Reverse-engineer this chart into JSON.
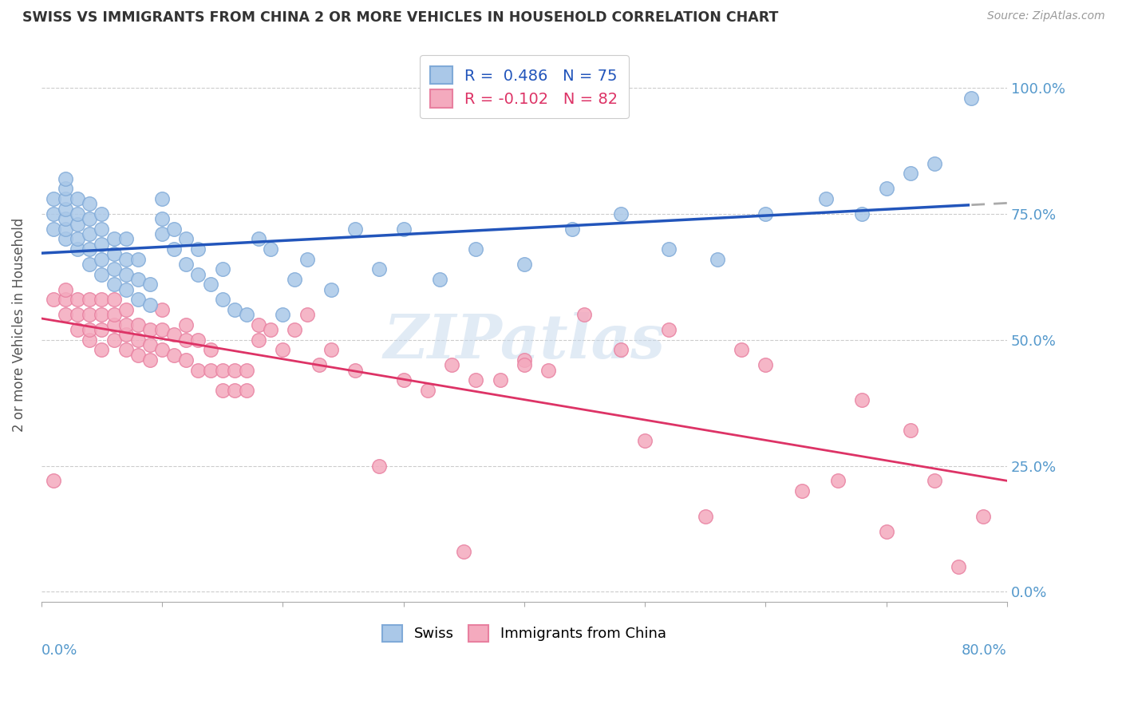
{
  "title": "SWISS VS IMMIGRANTS FROM CHINA 2 OR MORE VEHICLES IN HOUSEHOLD CORRELATION CHART",
  "source": "Source: ZipAtlas.com",
  "ylabel": "2 or more Vehicles in Household",
  "ytick_labels": [
    "0.0%",
    "25.0%",
    "50.0%",
    "75.0%",
    "100.0%"
  ],
  "ytick_values": [
    0.0,
    0.25,
    0.5,
    0.75,
    1.0
  ],
  "xlim": [
    0.0,
    0.8
  ],
  "ylim": [
    -0.02,
    1.08
  ],
  "swiss_color": "#aac8e8",
  "china_color": "#f4aabe",
  "swiss_edge": "#80aad8",
  "china_edge": "#e880a0",
  "trend_swiss_color": "#2255bb",
  "trend_china_color": "#dd3366",
  "trend_swiss_dash_color": "#aaaaaa",
  "R_swiss": 0.486,
  "N_swiss": 75,
  "R_china": -0.102,
  "N_china": 82,
  "legend_label_swiss": "Swiss",
  "legend_label_china": "Immigrants from China",
  "watermark": "ZIPatlas",
  "swiss_x": [
    0.01,
    0.01,
    0.01,
    0.02,
    0.02,
    0.02,
    0.02,
    0.02,
    0.02,
    0.02,
    0.03,
    0.03,
    0.03,
    0.03,
    0.03,
    0.04,
    0.04,
    0.04,
    0.04,
    0.04,
    0.05,
    0.05,
    0.05,
    0.05,
    0.05,
    0.06,
    0.06,
    0.06,
    0.06,
    0.07,
    0.07,
    0.07,
    0.07,
    0.08,
    0.08,
    0.08,
    0.09,
    0.09,
    0.1,
    0.1,
    0.1,
    0.11,
    0.11,
    0.12,
    0.12,
    0.13,
    0.13,
    0.14,
    0.15,
    0.15,
    0.16,
    0.17,
    0.18,
    0.19,
    0.2,
    0.21,
    0.22,
    0.24,
    0.26,
    0.28,
    0.3,
    0.33,
    0.36,
    0.4,
    0.44,
    0.48,
    0.52,
    0.56,
    0.6,
    0.65,
    0.68,
    0.7,
    0.72,
    0.74,
    0.77
  ],
  "swiss_y": [
    0.72,
    0.75,
    0.78,
    0.7,
    0.72,
    0.74,
    0.76,
    0.78,
    0.8,
    0.82,
    0.68,
    0.7,
    0.73,
    0.75,
    0.78,
    0.65,
    0.68,
    0.71,
    0.74,
    0.77,
    0.63,
    0.66,
    0.69,
    0.72,
    0.75,
    0.61,
    0.64,
    0.67,
    0.7,
    0.6,
    0.63,
    0.66,
    0.7,
    0.58,
    0.62,
    0.66,
    0.57,
    0.61,
    0.71,
    0.74,
    0.78,
    0.68,
    0.72,
    0.65,
    0.7,
    0.63,
    0.68,
    0.61,
    0.58,
    0.64,
    0.56,
    0.55,
    0.7,
    0.68,
    0.55,
    0.62,
    0.66,
    0.6,
    0.72,
    0.64,
    0.72,
    0.62,
    0.68,
    0.65,
    0.72,
    0.75,
    0.68,
    0.66,
    0.75,
    0.78,
    0.75,
    0.8,
    0.83,
    0.85,
    0.98
  ],
  "china_x": [
    0.01,
    0.01,
    0.02,
    0.02,
    0.02,
    0.03,
    0.03,
    0.03,
    0.04,
    0.04,
    0.04,
    0.04,
    0.05,
    0.05,
    0.05,
    0.05,
    0.06,
    0.06,
    0.06,
    0.06,
    0.07,
    0.07,
    0.07,
    0.07,
    0.08,
    0.08,
    0.08,
    0.09,
    0.09,
    0.09,
    0.1,
    0.1,
    0.1,
    0.11,
    0.11,
    0.12,
    0.12,
    0.12,
    0.13,
    0.13,
    0.14,
    0.14,
    0.15,
    0.15,
    0.16,
    0.16,
    0.17,
    0.17,
    0.18,
    0.18,
    0.19,
    0.2,
    0.21,
    0.22,
    0.23,
    0.24,
    0.26,
    0.28,
    0.3,
    0.32,
    0.34,
    0.36,
    0.38,
    0.4,
    0.42,
    0.45,
    0.48,
    0.5,
    0.52,
    0.55,
    0.58,
    0.6,
    0.63,
    0.66,
    0.68,
    0.7,
    0.72,
    0.74,
    0.76,
    0.78,
    0.35,
    0.4
  ],
  "china_y": [
    0.58,
    0.22,
    0.55,
    0.58,
    0.6,
    0.52,
    0.55,
    0.58,
    0.5,
    0.52,
    0.55,
    0.58,
    0.48,
    0.52,
    0.55,
    0.58,
    0.5,
    0.53,
    0.55,
    0.58,
    0.48,
    0.51,
    0.53,
    0.56,
    0.47,
    0.5,
    0.53,
    0.46,
    0.49,
    0.52,
    0.48,
    0.52,
    0.56,
    0.47,
    0.51,
    0.46,
    0.5,
    0.53,
    0.44,
    0.5,
    0.44,
    0.48,
    0.4,
    0.44,
    0.4,
    0.44,
    0.4,
    0.44,
    0.5,
    0.53,
    0.52,
    0.48,
    0.52,
    0.55,
    0.45,
    0.48,
    0.44,
    0.25,
    0.42,
    0.4,
    0.45,
    0.42,
    0.42,
    0.46,
    0.44,
    0.55,
    0.48,
    0.3,
    0.52,
    0.15,
    0.48,
    0.45,
    0.2,
    0.22,
    0.38,
    0.12,
    0.32,
    0.22,
    0.05,
    0.15,
    0.08,
    0.45
  ]
}
